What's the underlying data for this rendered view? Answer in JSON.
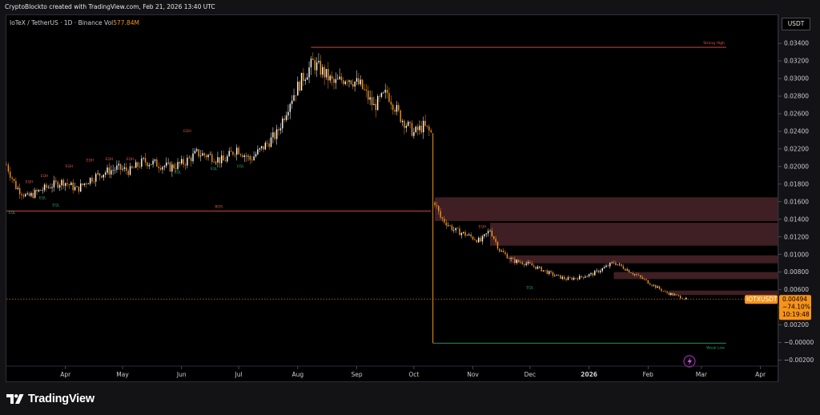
{
  "header": {
    "caption": "CryptoBlockto created with TradingView.com, Feb 21, 2026 13:40 UTC"
  },
  "legend": {
    "symbol": "IoTeX / TetherUS · 1D · Binance",
    "vol_label": "Vol",
    "vol_value": "577.84M"
  },
  "price_axis": {
    "unit": "USDT"
  },
  "price_tag": {
    "symbol": "IOTXUSDT",
    "price": "0.00494",
    "change": "−74.10%",
    "countdown": "10:19:48"
  },
  "branding": {
    "name": "TradingView"
  },
  "colors": {
    "up": "#ffffff",
    "down": "#f7931a",
    "bos_line": "#e0564c",
    "low_line": "#2fa36b",
    "zone": "#4a2429",
    "tag": "#f7931a"
  },
  "chart_data": {
    "type": "candlestick",
    "pair": "IOTXUSDT",
    "timeframe": "1D",
    "exchange": "Binance",
    "y_ticks": [
      "0.03400",
      "0.03200",
      "0.03000",
      "0.02800",
      "0.02600",
      "0.02400",
      "0.02200",
      "0.02000",
      "0.01800",
      "0.01600",
      "0.01400",
      "0.01200",
      "0.01000",
      "0.00800",
      "0.00600",
      "0.00400",
      "0.00200",
      "−0.00000",
      "−0.00200"
    ],
    "ylim": [
      -0.0026,
      0.0372
    ],
    "x_ticks": [
      "Apr",
      "May",
      "Jun",
      "Jul",
      "Aug",
      "Sep",
      "Oct",
      "Nov",
      "Dec",
      "2026",
      "Feb",
      "Mar",
      "Apr"
    ],
    "x_tick_dates": [
      "2025-04-01",
      "2025-05-01",
      "2025-06-01",
      "2025-07-01",
      "2025-08-01",
      "2025-09-01",
      "2025-10-01",
      "2025-11-01",
      "2025-12-01",
      "2026-01-01",
      "2026-02-01",
      "2026-03-01",
      "2026-04-01"
    ],
    "xlim": [
      "2025-03-01",
      "2026-04-10"
    ],
    "price_path": [
      [
        "2025-03-01",
        0.0202
      ],
      [
        "2025-03-06",
        0.0177
      ],
      [
        "2025-03-12",
        0.0165
      ],
      [
        "2025-03-18",
        0.0172
      ],
      [
        "2025-03-24",
        0.0178
      ],
      [
        "2025-03-31",
        0.0183
      ],
      [
        "2025-04-07",
        0.0174
      ],
      [
        "2025-04-14",
        0.0186
      ],
      [
        "2025-04-21",
        0.0193
      ],
      [
        "2025-04-28",
        0.0198
      ],
      [
        "2025-05-05",
        0.0195
      ],
      [
        "2025-05-12",
        0.0206
      ],
      [
        "2025-05-19",
        0.0203
      ],
      [
        "2025-05-26",
        0.0199
      ],
      [
        "2025-06-02",
        0.0204
      ],
      [
        "2025-06-09",
        0.0215
      ],
      [
        "2025-06-16",
        0.0212
      ],
      [
        "2025-06-23",
        0.0206
      ],
      [
        "2025-06-30",
        0.0221
      ],
      [
        "2025-07-07",
        0.0208
      ],
      [
        "2025-07-14",
        0.0222
      ],
      [
        "2025-07-21",
        0.0237
      ],
      [
        "2025-07-28",
        0.0275
      ],
      [
        "2025-08-04",
        0.0302
      ],
      [
        "2025-08-09",
        0.0318
      ],
      [
        "2025-08-14",
        0.0308
      ],
      [
        "2025-08-20",
        0.0294
      ],
      [
        "2025-08-27",
        0.0302
      ],
      [
        "2025-09-03",
        0.0292
      ],
      [
        "2025-09-10",
        0.0268
      ],
      [
        "2025-09-17",
        0.0284
      ],
      [
        "2025-09-24",
        0.0256
      ],
      [
        "2025-10-01",
        0.0238
      ],
      [
        "2025-10-06",
        0.0246
      ],
      [
        "2025-10-10",
        0.0238
      ],
      [
        "2025-10-11",
        0.0165
      ],
      [
        "2025-10-15",
        0.0142
      ],
      [
        "2025-10-22",
        0.0128
      ],
      [
        "2025-10-29",
        0.0122
      ],
      [
        "2025-11-05",
        0.0115
      ],
      [
        "2025-11-10",
        0.0128
      ],
      [
        "2025-11-15",
        0.0105
      ],
      [
        "2025-11-22",
        0.0093
      ],
      [
        "2025-11-29",
        0.009
      ],
      [
        "2025-12-06",
        0.0084
      ],
      [
        "2025-12-13",
        0.0077
      ],
      [
        "2025-12-20",
        0.0072
      ],
      [
        "2025-12-27",
        0.0074
      ],
      [
        "2026-01-03",
        0.0078
      ],
      [
        "2026-01-10",
        0.0086
      ],
      [
        "2026-01-14",
        0.0091
      ],
      [
        "2026-01-20",
        0.0084
      ],
      [
        "2026-01-27",
        0.0075
      ],
      [
        "2026-02-03",
        0.0066
      ],
      [
        "2026-02-10",
        0.0057
      ],
      [
        "2026-02-16",
        0.0053
      ],
      [
        "2026-02-21",
        0.00494
      ]
    ],
    "lines": [
      {
        "label": "BOS",
        "y": 0.01495,
        "from": "2025-03-01",
        "to": "2025-10-10",
        "color": "#e0564c"
      },
      {
        "label": "Strong High",
        "y": 0.03355,
        "from": "2025-08-08",
        "to": "2026-03-14",
        "color": "#e0564c"
      },
      {
        "label": "Weak Low",
        "y": -8e-05,
        "from": "2025-10-11",
        "to": "2026-03-14",
        "color": "#2fa36b"
      }
    ],
    "zones": [
      {
        "from": "2025-10-12",
        "top": 0.0165,
        "bottom": 0.0138
      },
      {
        "from": "2025-11-10",
        "top": 0.0136,
        "bottom": 0.011
      },
      {
        "from": "2025-11-20",
        "top": 0.0099,
        "bottom": 0.009
      },
      {
        "from": "2026-01-14",
        "top": 0.008,
        "bottom": 0.0072
      },
      {
        "from": "2026-02-12",
        "top": 0.0059,
        "bottom": 0.0054
      }
    ],
    "markers": [
      {
        "label": "EQH",
        "date": "2025-03-13",
        "y": 0.0181,
        "color": "#e0564c"
      },
      {
        "label": "EQH",
        "date": "2025-03-21",
        "y": 0.0188,
        "color": "#e0564c"
      },
      {
        "label": "EQH",
        "date": "2025-04-03",
        "y": 0.0199,
        "color": "#e0564c"
      },
      {
        "label": "EQH",
        "date": "2025-04-14",
        "y": 0.0206,
        "color": "#e0564c"
      },
      {
        "label": "EQH",
        "date": "2025-04-24",
        "y": 0.0207,
        "color": "#e0564c"
      },
      {
        "label": "EQH",
        "date": "2025-05-05",
        "y": 0.0207,
        "color": "#e0564c"
      },
      {
        "label": "EQH",
        "date": "2025-06-04",
        "y": 0.0239,
        "color": "#e0564c"
      },
      {
        "label": "EQH",
        "date": "2025-11-06",
        "y": 0.013,
        "color": "#e0564c"
      },
      {
        "label": "EQL",
        "date": "2025-03-04",
        "y": 0.0146,
        "color": "#2fa36b"
      },
      {
        "label": "EQL",
        "date": "2025-03-20",
        "y": 0.0163,
        "color": "#2fa36b"
      },
      {
        "label": "EQL",
        "date": "2025-03-27",
        "y": 0.0155,
        "color": "#2fa36b"
      },
      {
        "label": "EQL",
        "date": "2025-05-30",
        "y": 0.0192,
        "color": "#2fa36b"
      },
      {
        "label": "EQL",
        "date": "2025-06-18",
        "y": 0.0196,
        "color": "#2fa36b"
      },
      {
        "label": "EQL",
        "date": "2025-07-02",
        "y": 0.0199,
        "color": "#2fa36b"
      },
      {
        "label": "EQL",
        "date": "2025-12-01",
        "y": 0.0061,
        "color": "#2fa36b"
      }
    ],
    "last_price": 0.00494,
    "last_date": "2026-02-21"
  }
}
